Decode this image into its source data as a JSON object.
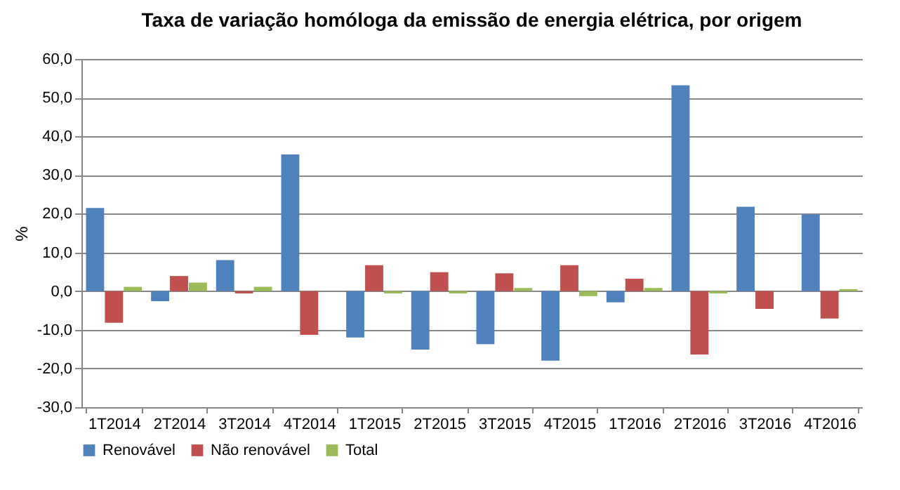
{
  "chart_data": {
    "type": "bar",
    "title": "Taxa de variação homóloga da emissão de energia elétrica, por origem",
    "ylabel": "%",
    "categories": [
      "1T2014",
      "2T2014",
      "3T2014",
      "4T2014",
      "1T2015",
      "2T2015",
      "3T2015",
      "4T2015",
      "1T2016",
      "2T2016",
      "3T2016",
      "4T2016"
    ],
    "series": [
      {
        "name": "Renovável",
        "color": "#4f81bd",
        "values": [
          21.5,
          -2.6,
          8.0,
          35.3,
          -12.0,
          -15.1,
          -13.7,
          -18.0,
          -2.9,
          53.2,
          21.8,
          19.8
        ]
      },
      {
        "name": "Não renovável",
        "color": "#c0504d",
        "values": [
          -8.2,
          3.9,
          -0.6,
          -11.3,
          6.7,
          4.9,
          4.6,
          6.7,
          3.2,
          -16.4,
          -4.6,
          -7.1
        ]
      },
      {
        "name": "Total",
        "color": "#9bbb59",
        "values": [
          1.1,
          2.2,
          1.1,
          0.0,
          -0.6,
          -0.6,
          0.8,
          -1.3,
          0.8,
          -0.6,
          0.0,
          0.5
        ]
      }
    ],
    "ylim": [
      -30,
      60
    ],
    "yticks": [
      {
        "value": -30,
        "label": "-30,0"
      },
      {
        "value": -20,
        "label": "-20,0"
      },
      {
        "value": -10,
        "label": "-10,0"
      },
      {
        "value": 0,
        "label": "0,0"
      },
      {
        "value": 10,
        "label": "10,0"
      },
      {
        "value": 20,
        "label": "20,0"
      },
      {
        "value": 30,
        "label": "30,0"
      },
      {
        "value": 40,
        "label": "40,0"
      },
      {
        "value": 50,
        "label": "50,0"
      },
      {
        "value": 60,
        "label": "60,0"
      }
    ],
    "grid": "y",
    "legend": "bottom"
  }
}
